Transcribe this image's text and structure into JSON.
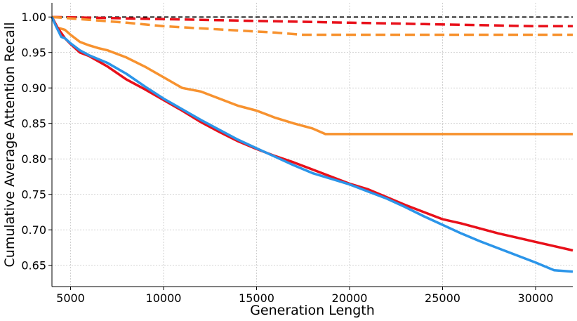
{
  "chart_data": {
    "type": "line",
    "title": "",
    "xlabel": "Generation Length",
    "ylabel": "Cumulative Average Attention Recall",
    "xlim": [
      4000,
      32000
    ],
    "ylim": [
      0.62,
      1.02
    ],
    "grid": true,
    "x_ticks": [
      5000,
      10000,
      15000,
      20000,
      25000,
      30000
    ],
    "x_tick_labels": [
      "5000",
      "10000",
      "15000",
      "20000",
      "25000",
      "30000"
    ],
    "y_ticks": [
      0.65,
      0.7,
      0.75,
      0.8,
      0.85,
      0.9,
      0.95,
      1.0
    ],
    "y_tick_labels": [
      "0.65",
      "0.70",
      "0.75",
      "0.80",
      "0.85",
      "0.90",
      "0.95",
      "1.00"
    ],
    "series": [
      {
        "name": "reference",
        "color": "#000000",
        "style": "dashed-thin",
        "x": [
          4000,
          32000
        ],
        "y": [
          1.0,
          1.0
        ]
      },
      {
        "name": "red-dashed",
        "color": "#e8101a",
        "style": "dashed",
        "x": [
          4000,
          6000,
          8000,
          10000,
          12000,
          14000,
          16000,
          18000,
          20000,
          22000,
          24000,
          26000,
          28000,
          30000,
          32000
        ],
        "y": [
          1.0,
          0.999,
          0.998,
          0.997,
          0.996,
          0.995,
          0.994,
          0.993,
          0.992,
          0.991,
          0.99,
          0.989,
          0.988,
          0.987,
          0.987
        ]
      },
      {
        "name": "orange-dashed",
        "color": "#f7922f",
        "style": "dashed",
        "x": [
          4000,
          6000,
          8000,
          10000,
          12000,
          14000,
          16000,
          17500,
          20000,
          25000,
          32000
        ],
        "y": [
          1.0,
          0.996,
          0.992,
          0.987,
          0.984,
          0.981,
          0.978,
          0.975,
          0.975,
          0.975,
          0.975
        ]
      },
      {
        "name": "orange-solid",
        "color": "#f7922f",
        "style": "solid",
        "x": [
          4000,
          4300,
          4700,
          5000,
          5500,
          6000,
          6500,
          7000,
          8000,
          9000,
          10000,
          11000,
          12000,
          13000,
          14000,
          15000,
          16000,
          17000,
          18000,
          18700,
          20000,
          25000,
          32000
        ],
        "y": [
          1.0,
          0.985,
          0.982,
          0.975,
          0.965,
          0.96,
          0.956,
          0.953,
          0.943,
          0.93,
          0.915,
          0.9,
          0.895,
          0.885,
          0.875,
          0.868,
          0.858,
          0.85,
          0.843,
          0.835,
          0.835,
          0.835,
          0.835
        ]
      },
      {
        "name": "red-solid",
        "color": "#e8101a",
        "style": "solid",
        "x": [
          4000,
          4300,
          4700,
          5000,
          5500,
          6000,
          7000,
          8000,
          9000,
          10000,
          11000,
          12000,
          13000,
          14000,
          15000,
          16000,
          17000,
          18000,
          19000,
          20000,
          21000,
          22000,
          23000,
          24000,
          25000,
          26000,
          27000,
          28000,
          29000,
          30000,
          31000,
          32000
        ],
        "y": [
          1.0,
          0.985,
          0.97,
          0.962,
          0.95,
          0.945,
          0.93,
          0.912,
          0.898,
          0.883,
          0.868,
          0.852,
          0.838,
          0.825,
          0.814,
          0.804,
          0.795,
          0.785,
          0.775,
          0.765,
          0.757,
          0.746,
          0.735,
          0.725,
          0.715,
          0.709,
          0.702,
          0.695,
          0.689,
          0.683,
          0.677,
          0.671
        ]
      },
      {
        "name": "blue-solid",
        "color": "#2b95e9",
        "style": "solid",
        "x": [
          4000,
          4200,
          4500,
          4700,
          5000,
          5500,
          6000,
          7000,
          8000,
          9000,
          10000,
          11000,
          12000,
          13000,
          14000,
          15000,
          16000,
          17000,
          18000,
          19000,
          20000,
          21000,
          22000,
          23000,
          24000,
          25000,
          26000,
          27000,
          28000,
          29000,
          30000,
          31000,
          32000
        ],
        "y": [
          1.0,
          0.988,
          0.972,
          0.97,
          0.963,
          0.953,
          0.946,
          0.935,
          0.92,
          0.902,
          0.885,
          0.87,
          0.855,
          0.841,
          0.827,
          0.815,
          0.803,
          0.791,
          0.78,
          0.772,
          0.764,
          0.754,
          0.744,
          0.732,
          0.719,
          0.707,
          0.695,
          0.684,
          0.674,
          0.664,
          0.654,
          0.643,
          0.641
        ]
      }
    ]
  }
}
